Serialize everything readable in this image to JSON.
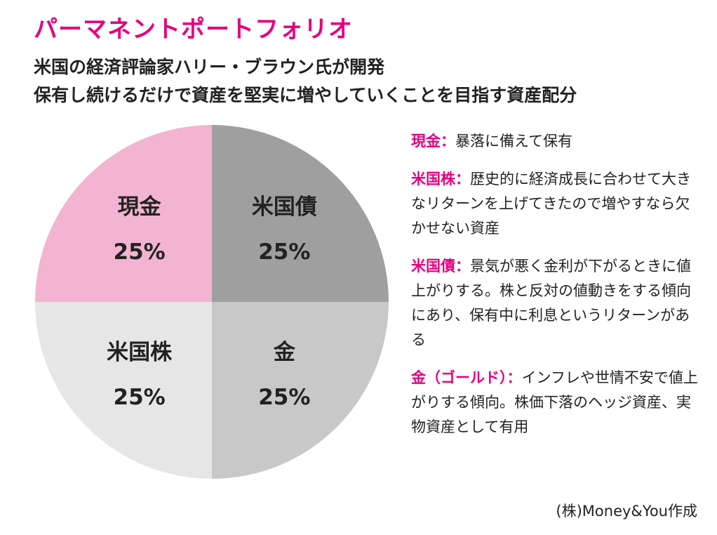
{
  "title": "パーマネントポートフォリオ",
  "subtitle": {
    "line1": "米国の経済評論家ハリー・ブラウン氏が開発",
    "line2": "保有し続けるだけで資産を堅実に増やしていくことを目指す資産配分"
  },
  "chart_data": {
    "type": "pie",
    "title": "パーマネントポートフォリオ",
    "unit": "%",
    "slices": [
      {
        "label": "現金",
        "value": 25,
        "display": "25%",
        "color": "#f2b4d0",
        "text_color": "#222222"
      },
      {
        "label": "米国株",
        "value": 25,
        "display": "25%",
        "color": "#e6e6e6",
        "text_color": "#222222"
      },
      {
        "label": "金",
        "value": 25,
        "display": "25%",
        "color": "#c8c8c8",
        "text_color": "#222222"
      },
      {
        "label": "米国債",
        "value": 25,
        "display": "25%",
        "color": "#9f9f9f",
        "text_color": "#222222"
      }
    ]
  },
  "notes": [
    {
      "label": "現金：",
      "text": "暴落に備えて保有"
    },
    {
      "label": "米国株：",
      "text": "歴史的に経済成長に合わせて大きなリターンを上げてきたので増やすなら欠かせない資産"
    },
    {
      "label": "米国債：",
      "text": "景気が悪く金利が下がるときに値上がりする。株と反対の値動きをする傾向にあり、保有中に利息というリターンがある"
    },
    {
      "label": "金（ゴールド）：",
      "text": "インフレや世情不安で値上がりする傾向。株価下落のヘッジ資産、実物資産として有用"
    }
  ],
  "credit": "(株)Money&You作成"
}
